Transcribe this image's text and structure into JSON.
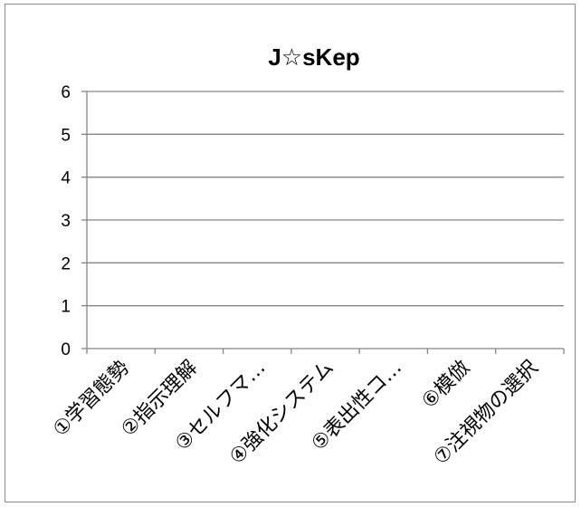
{
  "chart_data": {
    "type": "bar",
    "title": "J☆sKep",
    "xlabel": "",
    "ylabel": "",
    "categories": [
      "①学習態勢",
      "②指示理解",
      "③セルフマ…",
      "④強化システム",
      "⑤表出性コ…",
      "⑥模倣",
      "⑦注視物の選択"
    ],
    "series": [
      {
        "values": [
          null,
          null,
          null,
          null,
          null,
          null,
          null
        ]
      }
    ],
    "ylim": [
      0,
      6
    ],
    "yticks": [
      "0",
      "1",
      "2",
      "3",
      "4",
      "5",
      "6"
    ],
    "grid": true,
    "legend": "none",
    "colors": {
      "gridline": "#868686",
      "axis": "#868686",
      "text": "#000000",
      "border": "#8c8c8c"
    }
  }
}
